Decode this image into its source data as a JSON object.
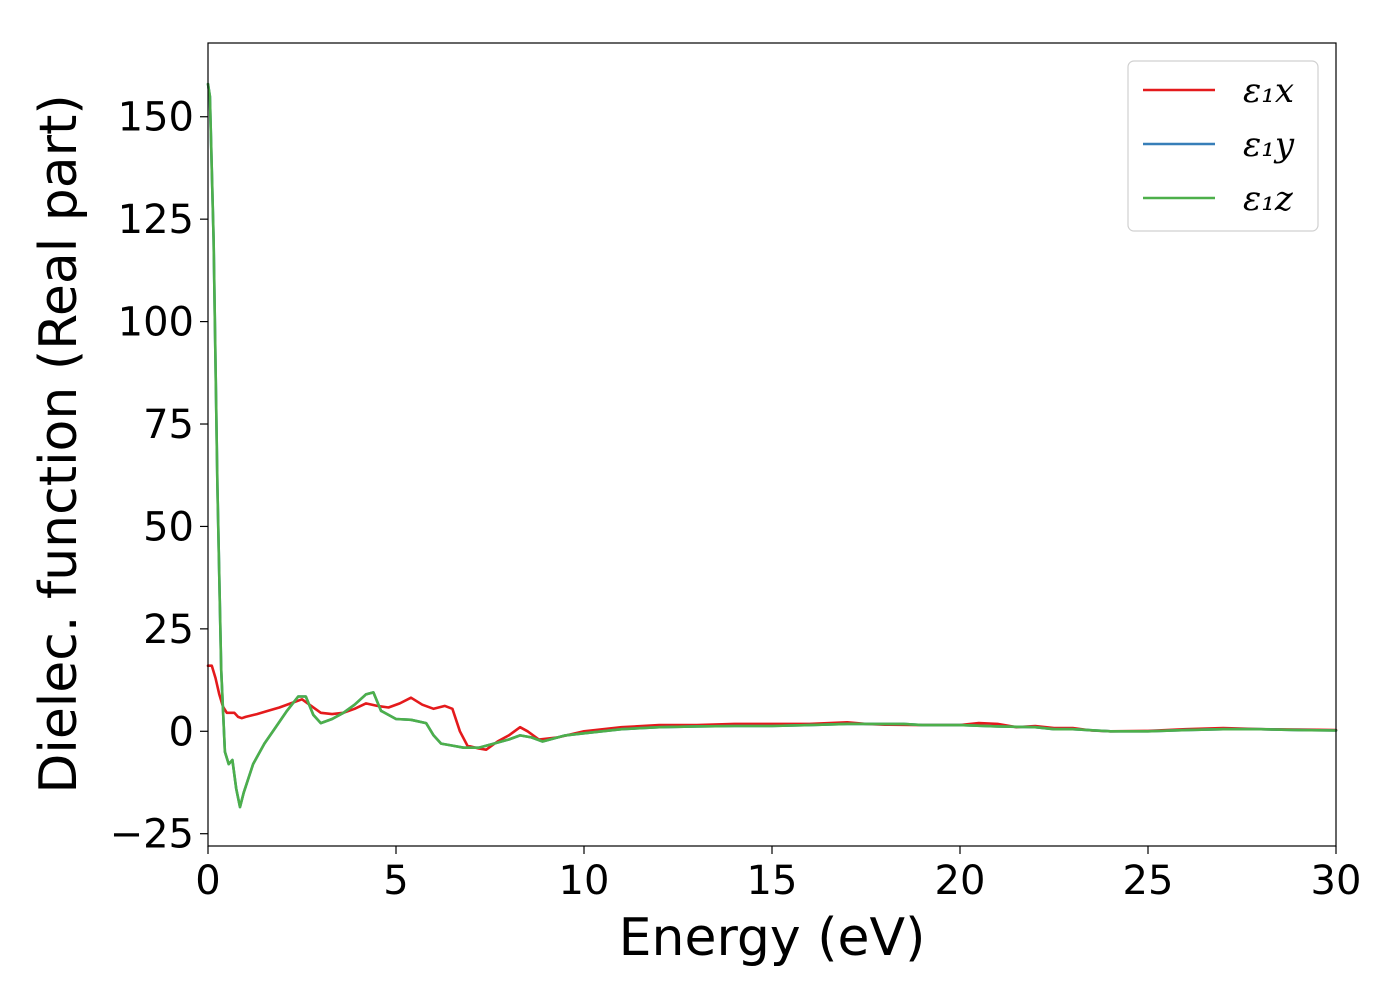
{
  "chart_data": {
    "type": "line",
    "title": "",
    "xlabel": "Energy (eV)",
    "ylabel": "Dielec. function (Real part)",
    "xlim": [
      0,
      30
    ],
    "ylim": [
      -28,
      168
    ],
    "xticks": [
      0,
      5,
      10,
      15,
      20,
      25,
      30
    ],
    "xtick_labels": [
      "0",
      "5",
      "10",
      "15",
      "20",
      "25",
      "30"
    ],
    "yticks": [
      -25,
      0,
      25,
      50,
      75,
      100,
      125,
      150
    ],
    "ytick_labels": [
      "−25",
      "0",
      "25",
      "50",
      "75",
      "100",
      "125",
      "150"
    ],
    "grid": false,
    "legend": "top-right",
    "series": [
      {
        "name": "ε₁x",
        "color": "#e41a1c",
        "points": [
          [
            0.0,
            16
          ],
          [
            0.1,
            16
          ],
          [
            0.2,
            13
          ],
          [
            0.3,
            9
          ],
          [
            0.4,
            6
          ],
          [
            0.5,
            4.5
          ],
          [
            0.6,
            4.5
          ],
          [
            0.7,
            4.5
          ],
          [
            0.8,
            3.5
          ],
          [
            0.9,
            3.2
          ],
          [
            1.0,
            3.5
          ],
          [
            1.3,
            4.2
          ],
          [
            1.6,
            5
          ],
          [
            1.9,
            5.8
          ],
          [
            2.2,
            6.8
          ],
          [
            2.5,
            7.8
          ],
          [
            2.7,
            6.5
          ],
          [
            3.0,
            4.5
          ],
          [
            3.3,
            4.2
          ],
          [
            3.6,
            4.5
          ],
          [
            3.9,
            5.5
          ],
          [
            4.2,
            6.8
          ],
          [
            4.5,
            6.2
          ],
          [
            4.8,
            5.8
          ],
          [
            5.1,
            6.8
          ],
          [
            5.4,
            8.2
          ],
          [
            5.7,
            6.5
          ],
          [
            6.0,
            5.5
          ],
          [
            6.3,
            6.2
          ],
          [
            6.5,
            5.5
          ],
          [
            6.7,
            0
          ],
          [
            6.9,
            -3.5
          ],
          [
            7.2,
            -4.2
          ],
          [
            7.4,
            -4.5
          ],
          [
            7.7,
            -2.5
          ],
          [
            8.0,
            -1
          ],
          [
            8.3,
            1
          ],
          [
            8.5,
            0
          ],
          [
            8.8,
            -2
          ],
          [
            9.3,
            -1.5
          ],
          [
            10,
            0
          ],
          [
            11,
            1
          ],
          [
            12,
            1.5
          ],
          [
            13,
            1.5
          ],
          [
            14,
            1.8
          ],
          [
            15,
            1.8
          ],
          [
            16,
            1.8
          ],
          [
            17,
            2.2
          ],
          [
            17.5,
            1.8
          ],
          [
            18,
            1.6
          ],
          [
            19,
            1.5
          ],
          [
            20,
            1.5
          ],
          [
            20.5,
            2
          ],
          [
            21,
            1.8
          ],
          [
            21.5,
            1
          ],
          [
            22,
            1.3
          ],
          [
            22.5,
            0.8
          ],
          [
            23,
            0.8
          ],
          [
            23.5,
            0.2
          ],
          [
            24,
            0
          ],
          [
            25,
            0.1
          ],
          [
            26,
            0.5
          ],
          [
            27,
            0.8
          ],
          [
            28,
            0.5
          ],
          [
            29,
            0.4
          ],
          [
            30,
            0.3
          ]
        ]
      },
      {
        "name": "ε₁y",
        "color": "#377eb8",
        "points": [
          [
            0.0,
            158
          ],
          [
            0.05,
            155
          ],
          [
            0.15,
            120
          ],
          [
            0.25,
            60
          ],
          [
            0.35,
            15
          ],
          [
            0.45,
            -5
          ],
          [
            0.55,
            -8
          ],
          [
            0.65,
            -7
          ],
          [
            0.75,
            -14
          ],
          [
            0.85,
            -18.5
          ],
          [
            0.95,
            -15
          ],
          [
            1.2,
            -8
          ],
          [
            1.5,
            -3
          ],
          [
            1.8,
            1
          ],
          [
            2.1,
            5
          ],
          [
            2.4,
            8.5
          ],
          [
            2.6,
            8.5
          ],
          [
            2.8,
            4
          ],
          [
            3.0,
            2
          ],
          [
            3.3,
            3
          ],
          [
            3.6,
            4.5
          ],
          [
            3.9,
            6.5
          ],
          [
            4.2,
            9
          ],
          [
            4.4,
            9.5
          ],
          [
            4.6,
            5
          ],
          [
            5.0,
            3
          ],
          [
            5.4,
            2.8
          ],
          [
            5.8,
            2
          ],
          [
            6.0,
            -1
          ],
          [
            6.2,
            -3
          ],
          [
            6.5,
            -3.5
          ],
          [
            6.8,
            -4
          ],
          [
            7.2,
            -4
          ],
          [
            7.6,
            -3
          ],
          [
            8.0,
            -2
          ],
          [
            8.3,
            -1
          ],
          [
            8.6,
            -1.5
          ],
          [
            8.9,
            -2.5
          ],
          [
            9.5,
            -1
          ],
          [
            10,
            -0.5
          ],
          [
            11,
            0.5
          ],
          [
            12,
            1
          ],
          [
            13,
            1.2
          ],
          [
            14,
            1.3
          ],
          [
            15,
            1.3
          ],
          [
            16,
            1.5
          ],
          [
            17,
            1.8
          ],
          [
            18,
            1.8
          ],
          [
            18.5,
            1.8
          ],
          [
            19,
            1.5
          ],
          [
            20,
            1.5
          ],
          [
            21,
            1.2
          ],
          [
            22,
            1
          ],
          [
            22.5,
            0.5
          ],
          [
            23,
            0.5
          ],
          [
            24,
            0
          ],
          [
            25,
            0
          ],
          [
            26,
            0.3
          ],
          [
            27,
            0.5
          ],
          [
            28,
            0.5
          ],
          [
            29,
            0.3
          ],
          [
            30,
            0.2
          ]
        ]
      },
      {
        "name": "ε₁z",
        "color": "#4daf4a",
        "points": [
          [
            0.0,
            158
          ],
          [
            0.05,
            155
          ],
          [
            0.15,
            120
          ],
          [
            0.25,
            60
          ],
          [
            0.35,
            15
          ],
          [
            0.45,
            -5
          ],
          [
            0.55,
            -8
          ],
          [
            0.65,
            -7
          ],
          [
            0.75,
            -14
          ],
          [
            0.85,
            -18.5
          ],
          [
            0.95,
            -15
          ],
          [
            1.2,
            -8
          ],
          [
            1.5,
            -3
          ],
          [
            1.8,
            1
          ],
          [
            2.1,
            5
          ],
          [
            2.4,
            8.5
          ],
          [
            2.6,
            8.5
          ],
          [
            2.8,
            4
          ],
          [
            3.0,
            2
          ],
          [
            3.3,
            3
          ],
          [
            3.6,
            4.5
          ],
          [
            3.9,
            6.5
          ],
          [
            4.2,
            9
          ],
          [
            4.4,
            9.5
          ],
          [
            4.6,
            5
          ],
          [
            5.0,
            3
          ],
          [
            5.4,
            2.8
          ],
          [
            5.8,
            2
          ],
          [
            6.0,
            -1
          ],
          [
            6.2,
            -3
          ],
          [
            6.5,
            -3.5
          ],
          [
            6.8,
            -4
          ],
          [
            7.2,
            -4
          ],
          [
            7.6,
            -3
          ],
          [
            8.0,
            -2
          ],
          [
            8.3,
            -1
          ],
          [
            8.6,
            -1.5
          ],
          [
            8.9,
            -2.5
          ],
          [
            9.5,
            -1
          ],
          [
            10,
            -0.5
          ],
          [
            11,
            0.5
          ],
          [
            12,
            1
          ],
          [
            13,
            1.2
          ],
          [
            14,
            1.3
          ],
          [
            15,
            1.3
          ],
          [
            16,
            1.5
          ],
          [
            17,
            1.8
          ],
          [
            18,
            1.8
          ],
          [
            18.5,
            1.8
          ],
          [
            19,
            1.5
          ],
          [
            20,
            1.5
          ],
          [
            21,
            1.2
          ],
          [
            22,
            1
          ],
          [
            22.5,
            0.5
          ],
          [
            23,
            0.5
          ],
          [
            24,
            0
          ],
          [
            25,
            0
          ],
          [
            26,
            0.3
          ],
          [
            27,
            0.5
          ],
          [
            28,
            0.5
          ],
          [
            29,
            0.3
          ],
          [
            30,
            0.2
          ]
        ]
      }
    ]
  }
}
